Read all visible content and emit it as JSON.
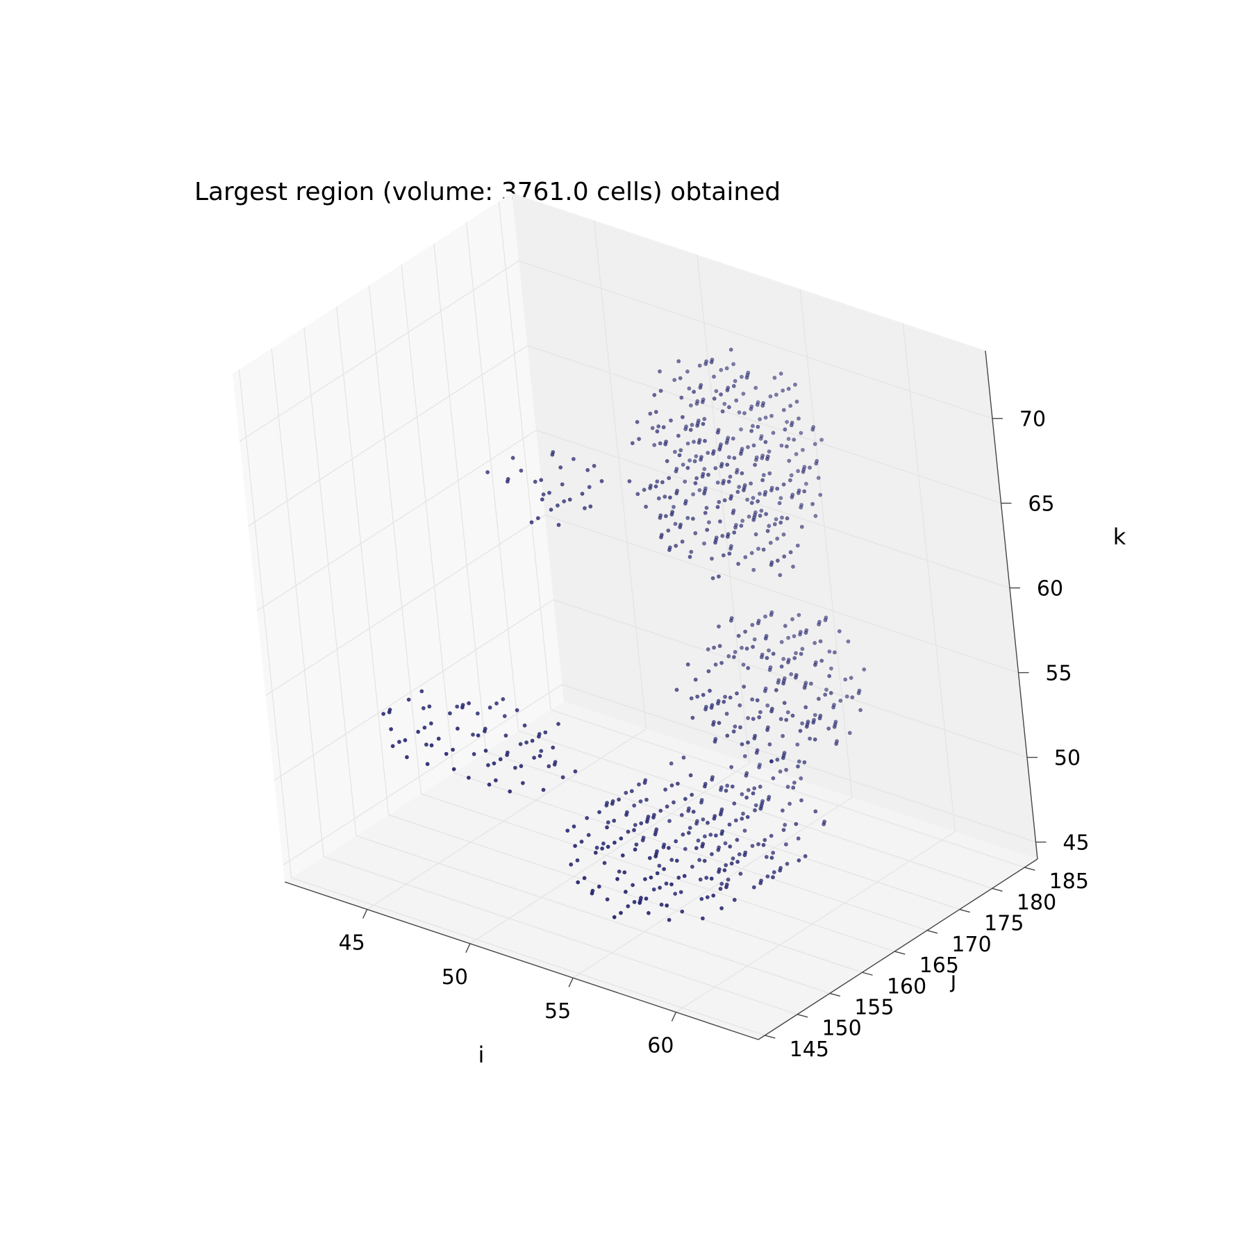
{
  "chart_data": {
    "type": "scatter",
    "projection": "3d",
    "title": "Largest region (volume: 3761.0 cells) obtained",
    "xlabel": "i",
    "ylabel": "j",
    "zlabel": "k",
    "xlim": [
      41,
      64
    ],
    "ylim": [
      144,
      187
    ],
    "zlim": [
      44,
      74
    ],
    "x_ticks": [
      45,
      50,
      55,
      60
    ],
    "y_ticks": [
      145,
      150,
      155,
      160,
      165,
      170,
      175,
      180,
      185
    ],
    "z_ticks": [
      45,
      50,
      55,
      60,
      65,
      70
    ],
    "grid": true,
    "marker_color": "#1a1a6e",
    "pane_colors": {
      "left": "#f8f8f8",
      "back": "#f0f0f0",
      "floor": "#f4f4f4"
    },
    "total_points_volume": 3761.0,
    "regions": [
      {
        "name": "",
        "i_range": [
          51,
          60
        ],
        "j_range": [
          147,
          178
        ],
        "k_range": [
          45,
          51
        ]
      },
      {
        "name": "",
        "i_range": [
          43,
          52
        ],
        "j_range": [
          149,
          162
        ],
        "k_range": [
          50,
          54
        ]
      },
      {
        "name": "",
        "i_range": [
          52,
          60
        ],
        "j_range": [
          166,
          184
        ],
        "k_range": [
          50,
          58
        ]
      },
      {
        "name": "",
        "i_range": [
          50,
          58
        ],
        "j_range": [
          168,
          186
        ],
        "k_range": [
          59,
          72
        ]
      },
      {
        "name": "",
        "i_range": [
          46,
          52
        ],
        "j_range": [
          160,
          170
        ],
        "k_range": [
          63,
          67
        ]
      }
    ]
  }
}
